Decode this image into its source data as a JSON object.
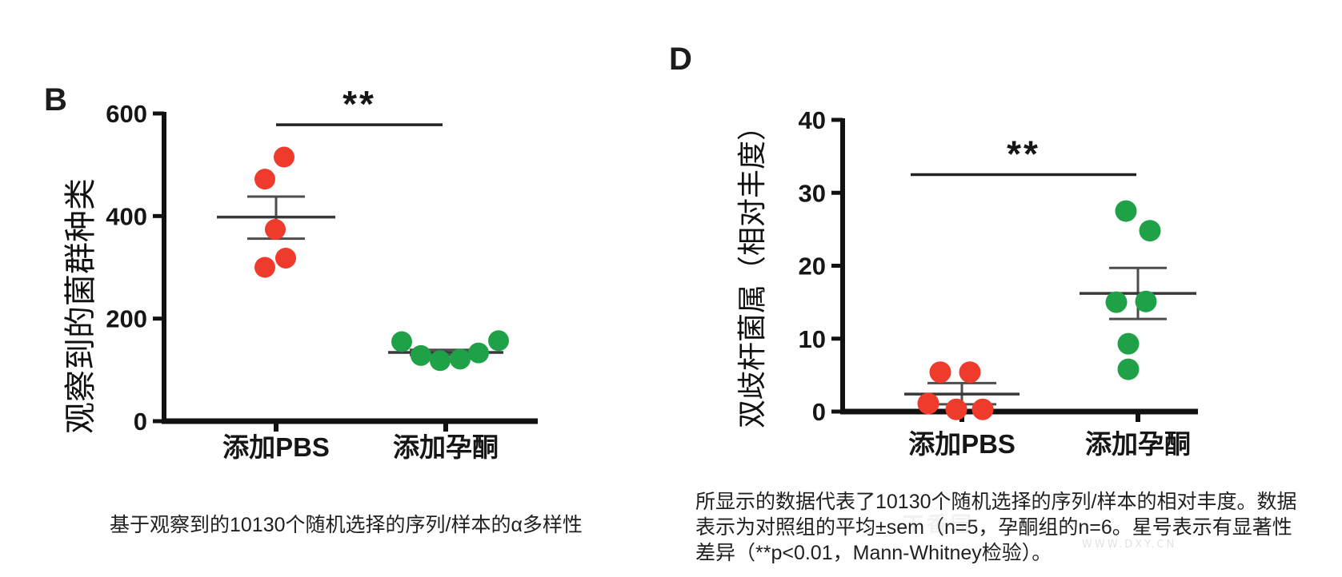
{
  "chart_data": [
    {
      "type": "scatter",
      "panel": "B",
      "title": "",
      "xlabel": "",
      "ylabel": "观察到的菌群种类",
      "ylim": [
        0,
        600
      ],
      "yticks": [
        0,
        200,
        400,
        600
      ],
      "grid": false,
      "legend": "none",
      "categories": [
        "添加PBS",
        "添加孕酮"
      ],
      "series": [
        {
          "name": "添加PBS",
          "color": "#ee3b2b",
          "values": [
            515,
            472,
            374,
            318,
            300
          ],
          "jitter_dx": [
            10,
            -14,
            -1,
            12,
            -14
          ],
          "mean": 398,
          "sem_upper": 438,
          "sem_lower": 356
        },
        {
          "name": "添加孕酮",
          "color": "#1fa148",
          "values": [
            155,
            128,
            118,
            121,
            133,
            157
          ],
          "jitter_dx": [
            -55,
            -31,
            -7,
            18,
            41,
            66
          ],
          "mean": 134,
          "sem_upper": 139,
          "sem_lower": 129
        }
      ],
      "significance": {
        "label": "**",
        "bar_y_value": 578
      },
      "caption": "基于观察到的10130个随机选择的序列/样本的α多样性"
    },
    {
      "type": "scatter",
      "panel": "D",
      "title": "",
      "xlabel": "",
      "ylabel": "双歧杆菌属（相对丰度）",
      "ylim": [
        0,
        40
      ],
      "yticks": [
        0,
        10,
        20,
        30,
        40
      ],
      "grid": false,
      "legend": "none",
      "categories": [
        "添加PBS",
        "添加孕酮"
      ],
      "series": [
        {
          "name": "添加PBS",
          "color": "#ee3b2b",
          "values": [
            5.4,
            5.4,
            1.1,
            0.3,
            0.3
          ],
          "jitter_dx": [
            -27,
            10,
            -42,
            -7,
            26
          ],
          "mean": 2.4,
          "sem_upper": 3.9,
          "sem_lower": 1.0
        },
        {
          "name": "添加孕酮",
          "color": "#1fa148",
          "values": [
            27.5,
            24.8,
            15.0,
            15.1,
            9.3,
            5.8
          ],
          "jitter_dx": [
            -15,
            15,
            -27,
            10,
            -12,
            -12
          ],
          "mean": 16.2,
          "sem_upper": 19.7,
          "sem_lower": 12.7
        }
      ],
      "significance": {
        "label": "**",
        "bar_y_value": 32.5
      },
      "caption_lines": [
        "所显示的数据代表了10130个随机选择的序列/样本的相对丰度。数据",
        "表示为对照组的平均±sem（n=5，孕酮组的n=6。星号表示有显著性",
        "差异（**p<0.01，Mann-Whitney检验）。"
      ]
    }
  ],
  "watermark": {
    "logo_text": "丁香园",
    "url_text": "WWW.DXY.CN"
  },
  "colors": {
    "pbs_dot": "#ee3b2b",
    "progesterone_dot": "#1fa148",
    "axis": "#111111",
    "stat_lines": "#4d4d4d",
    "text": "#1f1f1f"
  }
}
